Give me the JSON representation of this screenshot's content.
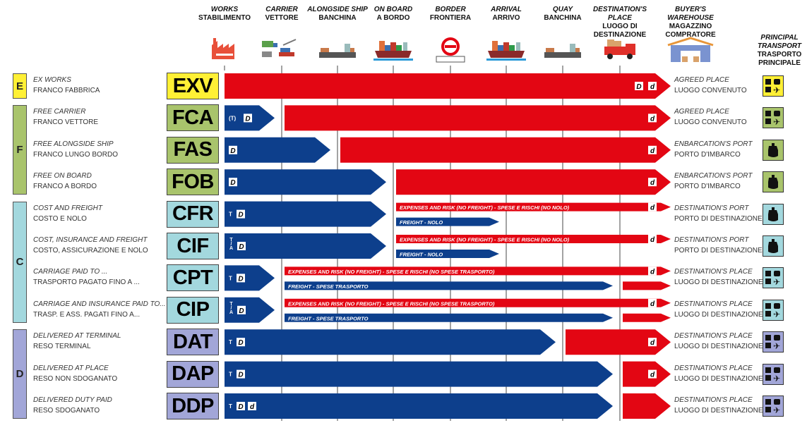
{
  "colors": {
    "seller": "#0d3f8c",
    "buyer": "#e30613",
    "E": "#fff035",
    "F": "#a9c46c",
    "C": "#a3d8de",
    "D": "#a2a6d8",
    "line": "#666666"
  },
  "stages": [
    {
      "en": "WORKS",
      "it": "STABILIMENTO",
      "icon": "factory-icon"
    },
    {
      "en": "CARRIER",
      "it": "VETTORE",
      "icon": "carrier-icon"
    },
    {
      "en": "ALONGSIDE SHIP",
      "it": "BANCHINA",
      "icon": "ship-alongside-icon"
    },
    {
      "en": "ON BOARD",
      "it": "A BORDO",
      "icon": "ship-loaded-icon"
    },
    {
      "en": "BORDER",
      "it": "FRONTIERA",
      "icon": "border-icon"
    },
    {
      "en": "ARRIVAL",
      "it": "ARRIVO",
      "icon": "ship-loaded-icon"
    },
    {
      "en": "QUAY",
      "it": "BANCHINA",
      "icon": "ship-alongside-icon"
    },
    {
      "en": "DESTINATION'S PLACE",
      "it": "LUOGO DI DESTINAZIONE",
      "icon": "truck-icon"
    },
    {
      "en": "BUYER'S WAREHOUSE",
      "it": "MAGAZZINO COMPRATORE",
      "icon": "warehouse-icon"
    }
  ],
  "transport_header": {
    "en": "PRINCIPAL TRANSPORT",
    "it": "TRASPORTO PRINCIPALE"
  },
  "groups": [
    {
      "letter": "E",
      "rows": [
        0,
        0
      ]
    },
    {
      "letter": "F",
      "rows": [
        1,
        3
      ]
    },
    {
      "letter": "C",
      "rows": [
        4,
        7
      ]
    },
    {
      "letter": "D",
      "rows": [
        8,
        10
      ]
    }
  ],
  "rows": [
    {
      "group": "E",
      "code": "EXV",
      "en": "EX WORKS",
      "it": "FRANCO FABBRICA",
      "dest_en": "AGREED PLACE",
      "dest_it": "LUOGO CONVENUTO",
      "transport": "multimodal",
      "bars": [
        {
          "who": "buyer",
          "from": 0,
          "to": 8,
          "lane": "full",
          "badges": [
            "D",
            "d"
          ]
        }
      ]
    },
    {
      "group": "F",
      "code": "FCA",
      "en": "FREE CARRIER",
      "it": "FRANCO VETTORE",
      "dest_en": "AGREED PLACE",
      "dest_it": "LUOGO CONVENUTO",
      "transport": "multimodal",
      "bars": [
        {
          "who": "seller",
          "from": 0,
          "to": 1,
          "lane": "full",
          "badges": [
            "(T)",
            "D"
          ]
        },
        {
          "who": "buyer",
          "from": 1,
          "to": 8,
          "lane": "full",
          "badges": [
            "d"
          ]
        }
      ]
    },
    {
      "group": "F",
      "code": "FAS",
      "en": "FREE ALONGSIDE SHIP",
      "it": "FRANCO LUNGO BORDO",
      "dest_en": "ENBARCATION'S PORT",
      "dest_it": "PORTO D'IMBARCO",
      "transport": "sea",
      "bars": [
        {
          "who": "seller",
          "from": 0,
          "to": 2,
          "lane": "full",
          "badges": [
            "D"
          ]
        },
        {
          "who": "buyer",
          "from": 2,
          "to": 8,
          "lane": "full",
          "badges": [
            "d"
          ]
        }
      ]
    },
    {
      "group": "F",
      "code": "FOB",
      "en": "FREE ON BOARD",
      "it": "FRANCO A BORDO",
      "dest_en": "ENBARCATION'S PORT",
      "dest_it": "PORTO D'IMBARCO",
      "transport": "sea",
      "bars": [
        {
          "who": "seller",
          "from": 0,
          "to": 3,
          "lane": "full",
          "badges": [
            "D"
          ]
        },
        {
          "who": "buyer",
          "from": 3,
          "to": 8,
          "lane": "full",
          "badges": [
            "d"
          ]
        }
      ]
    },
    {
      "group": "C",
      "code": "CFR",
      "en": "COST AND FREIGHT",
      "it": "COSTO E NOLO",
      "dest_en": "DESTINATION'S PORT",
      "dest_it": "PORTO DI DESTINAZIONE",
      "transport": "sea",
      "bars": [
        {
          "who": "seller",
          "from": 0,
          "to": 3,
          "lane": "full",
          "badges": [
            "T",
            "D"
          ]
        },
        {
          "who": "buyer",
          "from": 3,
          "to": 8,
          "lane": "top",
          "label": "EXPENSES AND RISK (NO FREIGHT) - SPESE E RISCHI (NO NOLO)",
          "badges": [
            "d"
          ]
        },
        {
          "who": "seller",
          "from": 3,
          "to": 5,
          "lane": "bottom",
          "label": "FREIGHT - NOLO",
          "badges": []
        }
      ]
    },
    {
      "group": "C",
      "code": "CIF",
      "en": "COST, INSURANCE AND FREIGHT",
      "it": "COSTO, ASSICURAZIONE E NOLO",
      "dest_en": "DESTINATION'S PORT",
      "dest_it": "PORTO DI DESTINAZIONE",
      "transport": "sea",
      "bars": [
        {
          "who": "seller",
          "from": 0,
          "to": 3,
          "lane": "full",
          "badges": [
            "T/A",
            "D"
          ]
        },
        {
          "who": "buyer",
          "from": 3,
          "to": 8,
          "lane": "top",
          "label": "EXPENSES AND RISK (NO FREIGHT) - SPESE E RISCHI (NO NOLO)",
          "badges": [
            "d"
          ]
        },
        {
          "who": "seller",
          "from": 3,
          "to": 5,
          "lane": "bottom",
          "label": "FREIGHT - NOLO",
          "badges": []
        }
      ]
    },
    {
      "group": "C",
      "code": "CPT",
      "en": "CARRIAGE PAID TO ...",
      "it": "TRASPORTO PAGATO FINO A ...",
      "dest_en": "DESTINATION'S PLACE",
      "dest_it": "LUOGO DI DESTINAZIONE",
      "transport": "multimodal",
      "bars": [
        {
          "who": "seller",
          "from": 0,
          "to": 1,
          "lane": "full",
          "badges": [
            "T",
            "D"
          ]
        },
        {
          "who": "buyer",
          "from": 1,
          "to": 8,
          "lane": "top",
          "label": "EXPENSES AND RISK (NO FREIGHT) - SPESE E RISCHI (NO SPESE TRASPORTO)",
          "badges": [
            "d"
          ]
        },
        {
          "who": "seller",
          "from": 1,
          "to": 7,
          "lane": "bottom",
          "label": "FREIGHT - SPESE TRASPORTO",
          "badges": []
        },
        {
          "who": "buyer",
          "from": 7,
          "to": 8,
          "lane": "bottom",
          "badges": []
        }
      ]
    },
    {
      "group": "C",
      "code": "CIP",
      "en": "CARRIAGE AND INSURANCE PAID TO...",
      "it": "TRASP. E ASS. PAGATI FINO A...",
      "dest_en": "DESTINATION'S PLACE",
      "dest_it": "LUOGO DI DESTINAZIONE",
      "transport": "multimodal",
      "bars": [
        {
          "who": "seller",
          "from": 0,
          "to": 1,
          "lane": "full",
          "badges": [
            "T/A",
            "D"
          ]
        },
        {
          "who": "buyer",
          "from": 1,
          "to": 8,
          "lane": "top",
          "label": "EXPENSES AND RISK (NO FREIGHT) - SPESE E RISCHI (NO SPESE TRASPORTO)",
          "badges": [
            "d"
          ]
        },
        {
          "who": "seller",
          "from": 1,
          "to": 7,
          "lane": "bottom",
          "label": "FREIGHT - SPESE TRASPORTO",
          "badges": []
        },
        {
          "who": "buyer",
          "from": 7,
          "to": 8,
          "lane": "bottom",
          "badges": []
        }
      ]
    },
    {
      "group": "D",
      "code": "DAT",
      "en": "DELIVERED AT TERMINAL",
      "it": "RESO TERMINAL",
      "dest_en": "DESTINATION'S PLACE",
      "dest_it": "LUOGO DI DESTINAZIONE",
      "transport": "multimodal",
      "bars": [
        {
          "who": "seller",
          "from": 0,
          "to": 6,
          "lane": "full",
          "badges": [
            "T",
            "D"
          ]
        },
        {
          "who": "buyer",
          "from": 6,
          "to": 8,
          "lane": "full",
          "badges": [
            "d"
          ]
        }
      ]
    },
    {
      "group": "D",
      "code": "DAP",
      "en": "DELIVERED AT PLACE",
      "it": "RESO NON SDOGANATO",
      "dest_en": "DESTINATION'S PLACE",
      "dest_it": "LUOGO DI DESTINAZIONE",
      "transport": "multimodal",
      "bars": [
        {
          "who": "seller",
          "from": 0,
          "to": 7,
          "lane": "full",
          "badges": [
            "T",
            "D"
          ]
        },
        {
          "who": "buyer",
          "from": 7,
          "to": 8,
          "lane": "full",
          "badges": [
            "d"
          ]
        }
      ]
    },
    {
      "group": "D",
      "code": "DDP",
      "en": "DELIVERED DUTY PAID",
      "it": "RESO SDOGANATO",
      "dest_en": "DESTINATION'S PLACE",
      "dest_it": "LUOGO DI DESTINAZIONE",
      "transport": "multimodal",
      "bars": [
        {
          "who": "seller",
          "from": 0,
          "to": 7,
          "lane": "full",
          "badges": [
            "T",
            "D",
            "d"
          ]
        },
        {
          "who": "buyer",
          "from": 7,
          "to": 8,
          "lane": "full",
          "badges": []
        }
      ]
    }
  ]
}
